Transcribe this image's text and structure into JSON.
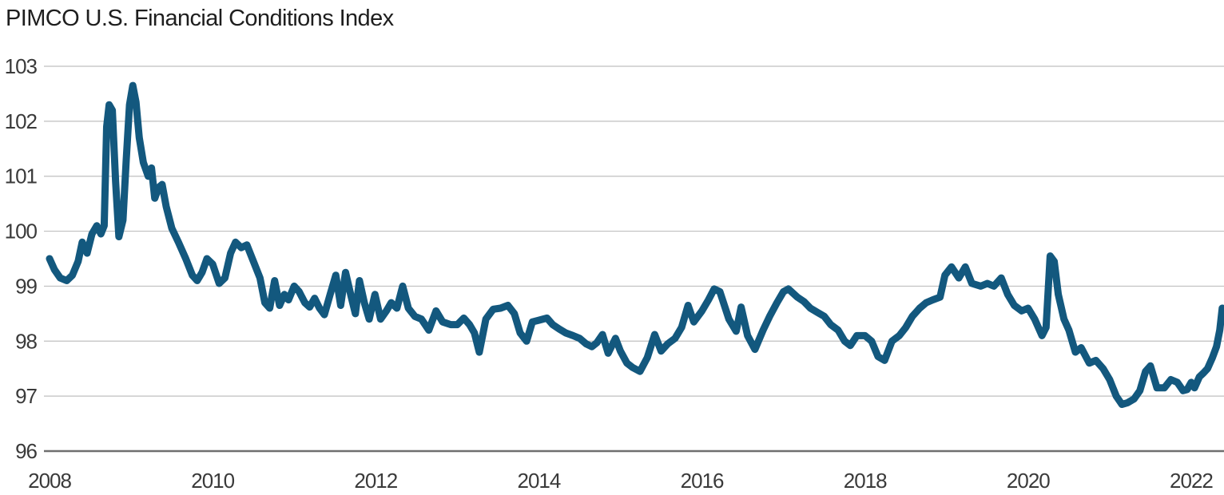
{
  "title": "PIMCO U.S. Financial Conditions Index",
  "colors": {
    "line": "#13587E",
    "grid": "#bfbfbf",
    "axis_line": "#6f6f6f",
    "tick_text": "#3a3a3a",
    "title_text": "#1e1e1e"
  },
  "chart_data": {
    "type": "line",
    "title": "PIMCO U.S. Financial Conditions Index",
    "xlabel": "",
    "ylabel": "",
    "legend": "none",
    "grid": "horizontal-gridlines-only",
    "x_ticks": [
      2008,
      2010,
      2012,
      2014,
      2016,
      2018,
      2020,
      2022
    ],
    "y_ticks": [
      96,
      97,
      98,
      99,
      100,
      101,
      102,
      103
    ],
    "xlim": [
      2007.931,
      2022.402
    ],
    "ylim": [
      96,
      103
    ],
    "series": [
      {
        "name": "PIMCO U.S. Financial Conditions Index",
        "points": [
          [
            2008.0,
            99.5
          ],
          [
            2008.06,
            99.3
          ],
          [
            2008.13,
            99.15
          ],
          [
            2008.21,
            99.1
          ],
          [
            2008.28,
            99.2
          ],
          [
            2008.35,
            99.45
          ],
          [
            2008.4,
            99.8
          ],
          [
            2008.46,
            99.6
          ],
          [
            2008.52,
            99.95
          ],
          [
            2008.58,
            100.1
          ],
          [
            2008.63,
            99.95
          ],
          [
            2008.67,
            100.1
          ],
          [
            2008.7,
            101.9
          ],
          [
            2008.73,
            102.3
          ],
          [
            2008.77,
            102.2
          ],
          [
            2008.81,
            100.9
          ],
          [
            2008.85,
            99.9
          ],
          [
            2008.9,
            100.2
          ],
          [
            2008.94,
            101.3
          ],
          [
            2008.98,
            102.3
          ],
          [
            2009.02,
            102.65
          ],
          [
            2009.06,
            102.35
          ],
          [
            2009.1,
            101.7
          ],
          [
            2009.15,
            101.25
          ],
          [
            2009.21,
            101.0
          ],
          [
            2009.25,
            101.15
          ],
          [
            2009.29,
            100.6
          ],
          [
            2009.34,
            100.8
          ],
          [
            2009.38,
            100.85
          ],
          [
            2009.43,
            100.45
          ],
          [
            2009.5,
            100.05
          ],
          [
            2009.58,
            99.8
          ],
          [
            2009.67,
            99.5
          ],
          [
            2009.75,
            99.2
          ],
          [
            2009.81,
            99.1
          ],
          [
            2009.87,
            99.25
          ],
          [
            2009.93,
            99.5
          ],
          [
            2010.0,
            99.4
          ],
          [
            2010.08,
            99.05
          ],
          [
            2010.15,
            99.15
          ],
          [
            2010.22,
            99.6
          ],
          [
            2010.28,
            99.8
          ],
          [
            2010.35,
            99.7
          ],
          [
            2010.42,
            99.75
          ],
          [
            2010.5,
            99.45
          ],
          [
            2010.58,
            99.15
          ],
          [
            2010.64,
            98.7
          ],
          [
            2010.7,
            98.6
          ],
          [
            2010.76,
            99.1
          ],
          [
            2010.82,
            98.65
          ],
          [
            2010.88,
            98.85
          ],
          [
            2010.93,
            98.75
          ],
          [
            2011.0,
            99.0
          ],
          [
            2011.06,
            98.9
          ],
          [
            2011.13,
            98.7
          ],
          [
            2011.19,
            98.62
          ],
          [
            2011.25,
            98.78
          ],
          [
            2011.31,
            98.6
          ],
          [
            2011.37,
            98.48
          ],
          [
            2011.44,
            98.85
          ],
          [
            2011.51,
            99.2
          ],
          [
            2011.57,
            98.65
          ],
          [
            2011.63,
            99.25
          ],
          [
            2011.7,
            98.8
          ],
          [
            2011.75,
            98.5
          ],
          [
            2011.8,
            99.1
          ],
          [
            2011.86,
            98.7
          ],
          [
            2011.92,
            98.4
          ],
          [
            2011.99,
            98.85
          ],
          [
            2012.06,
            98.4
          ],
          [
            2012.13,
            98.55
          ],
          [
            2012.19,
            98.7
          ],
          [
            2012.26,
            98.6
          ],
          [
            2012.33,
            99.0
          ],
          [
            2012.4,
            98.6
          ],
          [
            2012.48,
            98.45
          ],
          [
            2012.56,
            98.4
          ],
          [
            2012.65,
            98.2
          ],
          [
            2012.74,
            98.55
          ],
          [
            2012.82,
            98.35
          ],
          [
            2012.92,
            98.3
          ],
          [
            2013.0,
            98.3
          ],
          [
            2013.08,
            98.42
          ],
          [
            2013.15,
            98.3
          ],
          [
            2013.21,
            98.15
          ],
          [
            2013.27,
            97.8
          ],
          [
            2013.35,
            98.4
          ],
          [
            2013.44,
            98.58
          ],
          [
            2013.53,
            98.6
          ],
          [
            2013.62,
            98.65
          ],
          [
            2013.7,
            98.5
          ],
          [
            2013.77,
            98.15
          ],
          [
            2013.85,
            98.0
          ],
          [
            2013.92,
            98.35
          ],
          [
            2014.0,
            98.38
          ],
          [
            2014.1,
            98.42
          ],
          [
            2014.17,
            98.3
          ],
          [
            2014.25,
            98.22
          ],
          [
            2014.33,
            98.15
          ],
          [
            2014.42,
            98.1
          ],
          [
            2014.5,
            98.05
          ],
          [
            2014.58,
            97.95
          ],
          [
            2014.65,
            97.9
          ],
          [
            2014.71,
            97.97
          ],
          [
            2014.78,
            98.12
          ],
          [
            2014.85,
            97.78
          ],
          [
            2014.94,
            98.05
          ],
          [
            2015.0,
            97.82
          ],
          [
            2015.08,
            97.6
          ],
          [
            2015.15,
            97.52
          ],
          [
            2015.24,
            97.45
          ],
          [
            2015.33,
            97.7
          ],
          [
            2015.42,
            98.12
          ],
          [
            2015.5,
            97.82
          ],
          [
            2015.58,
            97.95
          ],
          [
            2015.67,
            98.05
          ],
          [
            2015.75,
            98.25
          ],
          [
            2015.83,
            98.65
          ],
          [
            2015.9,
            98.35
          ],
          [
            2016.0,
            98.55
          ],
          [
            2016.08,
            98.75
          ],
          [
            2016.15,
            98.95
          ],
          [
            2016.22,
            98.9
          ],
          [
            2016.33,
            98.4
          ],
          [
            2016.42,
            98.18
          ],
          [
            2016.48,
            98.62
          ],
          [
            2016.56,
            98.1
          ],
          [
            2016.65,
            97.85
          ],
          [
            2016.75,
            98.2
          ],
          [
            2016.83,
            98.45
          ],
          [
            2016.92,
            98.7
          ],
          [
            2017.0,
            98.9
          ],
          [
            2017.06,
            98.95
          ],
          [
            2017.17,
            98.8
          ],
          [
            2017.25,
            98.72
          ],
          [
            2017.33,
            98.6
          ],
          [
            2017.42,
            98.52
          ],
          [
            2017.5,
            98.45
          ],
          [
            2017.58,
            98.3
          ],
          [
            2017.67,
            98.2
          ],
          [
            2017.75,
            98.0
          ],
          [
            2017.82,
            97.92
          ],
          [
            2017.9,
            98.1
          ],
          [
            2018.0,
            98.1
          ],
          [
            2018.08,
            98.0
          ],
          [
            2018.16,
            97.72
          ],
          [
            2018.24,
            97.65
          ],
          [
            2018.33,
            98.0
          ],
          [
            2018.42,
            98.1
          ],
          [
            2018.5,
            98.25
          ],
          [
            2018.58,
            98.45
          ],
          [
            2018.67,
            98.6
          ],
          [
            2018.75,
            98.7
          ],
          [
            2018.83,
            98.75
          ],
          [
            2018.92,
            98.8
          ],
          [
            2018.98,
            99.2
          ],
          [
            2019.06,
            99.35
          ],
          [
            2019.15,
            99.15
          ],
          [
            2019.23,
            99.35
          ],
          [
            2019.31,
            99.05
          ],
          [
            2019.42,
            99.0
          ],
          [
            2019.5,
            99.05
          ],
          [
            2019.58,
            99.0
          ],
          [
            2019.67,
            99.15
          ],
          [
            2019.75,
            98.85
          ],
          [
            2019.83,
            98.65
          ],
          [
            2019.92,
            98.55
          ],
          [
            2020.0,
            98.6
          ],
          [
            2020.08,
            98.4
          ],
          [
            2020.17,
            98.1
          ],
          [
            2020.22,
            98.25
          ],
          [
            2020.27,
            99.55
          ],
          [
            2020.32,
            99.45
          ],
          [
            2020.37,
            98.85
          ],
          [
            2020.44,
            98.4
          ],
          [
            2020.5,
            98.2
          ],
          [
            2020.58,
            97.8
          ],
          [
            2020.65,
            97.88
          ],
          [
            2020.75,
            97.6
          ],
          [
            2020.83,
            97.65
          ],
          [
            2020.92,
            97.5
          ],
          [
            2021.0,
            97.3
          ],
          [
            2021.08,
            97.0
          ],
          [
            2021.15,
            96.85
          ],
          [
            2021.22,
            96.88
          ],
          [
            2021.3,
            96.95
          ],
          [
            2021.37,
            97.1
          ],
          [
            2021.44,
            97.45
          ],
          [
            2021.5,
            97.55
          ],
          [
            2021.58,
            97.15
          ],
          [
            2021.67,
            97.15
          ],
          [
            2021.75,
            97.3
          ],
          [
            2021.83,
            97.25
          ],
          [
            2021.9,
            97.1
          ],
          [
            2021.95,
            97.12
          ],
          [
            2022.0,
            97.25
          ],
          [
            2022.04,
            97.15
          ],
          [
            2022.1,
            97.35
          ],
          [
            2022.15,
            97.42
          ],
          [
            2022.2,
            97.5
          ],
          [
            2022.26,
            97.7
          ],
          [
            2022.31,
            97.9
          ],
          [
            2022.35,
            98.2
          ],
          [
            2022.38,
            98.6
          ]
        ]
      }
    ]
  }
}
